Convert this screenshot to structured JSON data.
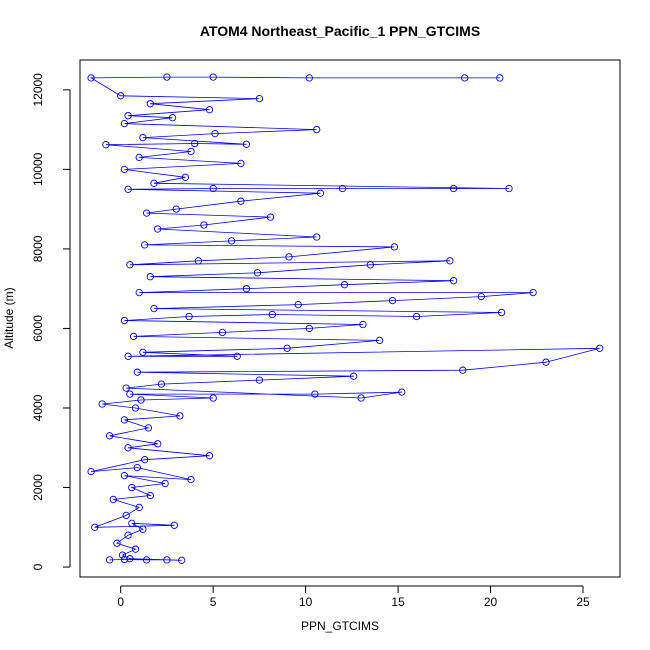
{
  "chart_data": {
    "type": "scatter",
    "title": "ATOM4 Northeast_Pacific_1 PPN_GTCIMS",
    "xlabel": "PPN_GTCIMS",
    "ylabel": "Altitude (m)",
    "xlim": [
      -2.2,
      27.0
    ],
    "ylim": [
      -250,
      12750
    ],
    "x_ticks": [
      0,
      5,
      10,
      15,
      20,
      25
    ],
    "y_ticks": [
      0,
      2000,
      4000,
      6000,
      8000,
      10000,
      12000
    ],
    "grid": false,
    "legend": "none",
    "style": "points connected by lines (type 'o' markers with line)",
    "color": "#0000ff",
    "series": [
      {
        "values": [
          [
            -0.6,
            180
          ],
          [
            0.2,
            190
          ],
          [
            1.4,
            180
          ],
          [
            2.5,
            180
          ],
          [
            3.3,
            170
          ],
          [
            0.5,
            210
          ],
          [
            0.1,
            300
          ],
          [
            0.8,
            450
          ],
          [
            -0.2,
            600
          ],
          [
            0.4,
            800
          ],
          [
            1.2,
            950
          ],
          [
            0.6,
            1100
          ],
          [
            2.9,
            1050
          ],
          [
            -1.4,
            1000
          ],
          [
            0.3,
            1300
          ],
          [
            1.0,
            1500
          ],
          [
            -0.4,
            1700
          ],
          [
            1.6,
            1800
          ],
          [
            0.6,
            2000
          ],
          [
            2.4,
            2100
          ],
          [
            0.2,
            2300
          ],
          [
            3.8,
            2200
          ],
          [
            0.9,
            2500
          ],
          [
            -1.6,
            2400
          ],
          [
            1.3,
            2700
          ],
          [
            4.8,
            2800
          ],
          [
            0.4,
            3000
          ],
          [
            2.0,
            3100
          ],
          [
            -0.6,
            3300
          ],
          [
            1.5,
            3500
          ],
          [
            0.2,
            3700
          ],
          [
            3.2,
            3800
          ],
          [
            0.8,
            4000
          ],
          [
            -1.0,
            4100
          ],
          [
            1.1,
            4200
          ],
          [
            5.0,
            4250
          ],
          [
            0.5,
            4350
          ],
          [
            10.5,
            4350
          ],
          [
            15.2,
            4400
          ],
          [
            13.0,
            4250
          ],
          [
            0.3,
            4500
          ],
          [
            2.2,
            4600
          ],
          [
            7.5,
            4700
          ],
          [
            12.6,
            4800
          ],
          [
            0.9,
            4900
          ],
          [
            18.5,
            4950
          ],
          [
            23.0,
            5150
          ],
          [
            25.9,
            5500
          ],
          [
            0.4,
            5300
          ],
          [
            6.3,
            5300
          ],
          [
            1.2,
            5400
          ],
          [
            9.0,
            5500
          ],
          [
            14.0,
            5700
          ],
          [
            0.7,
            5800
          ],
          [
            5.5,
            5900
          ],
          [
            10.2,
            6000
          ],
          [
            13.1,
            6100
          ],
          [
            0.2,
            6200
          ],
          [
            3.7,
            6300
          ],
          [
            8.2,
            6350
          ],
          [
            16.0,
            6300
          ],
          [
            20.6,
            6400
          ],
          [
            1.8,
            6500
          ],
          [
            9.6,
            6600
          ],
          [
            14.7,
            6700
          ],
          [
            19.5,
            6800
          ],
          [
            22.3,
            6900
          ],
          [
            1.0,
            6900
          ],
          [
            6.8,
            7000
          ],
          [
            12.1,
            7100
          ],
          [
            18.0,
            7200
          ],
          [
            1.6,
            7300
          ],
          [
            7.4,
            7400
          ],
          [
            13.5,
            7600
          ],
          [
            17.8,
            7700
          ],
          [
            0.5,
            7600
          ],
          [
            4.2,
            7700
          ],
          [
            9.1,
            7800
          ],
          [
            14.8,
            8050
          ],
          [
            1.3,
            8100
          ],
          [
            6.0,
            8200
          ],
          [
            10.6,
            8300
          ],
          [
            2.0,
            8500
          ],
          [
            4.5,
            8600
          ],
          [
            8.1,
            8800
          ],
          [
            1.4,
            8900
          ],
          [
            3.0,
            9000
          ],
          [
            6.5,
            9200
          ],
          [
            10.8,
            9400
          ],
          [
            0.4,
            9500
          ],
          [
            5.0,
            9520
          ],
          [
            12.0,
            9520
          ],
          [
            18.0,
            9520
          ],
          [
            21.0,
            9520
          ],
          [
            1.8,
            9650
          ],
          [
            3.5,
            9800
          ],
          [
            0.2,
            10000
          ],
          [
            6.5,
            10150
          ],
          [
            1.0,
            10300
          ],
          [
            3.8,
            10450
          ],
          [
            -0.8,
            10620
          ],
          [
            4.0,
            10650
          ],
          [
            6.8,
            10630
          ],
          [
            1.2,
            10800
          ],
          [
            5.1,
            10900
          ],
          [
            10.6,
            11000
          ],
          [
            0.2,
            11150
          ],
          [
            2.8,
            11300
          ],
          [
            0.4,
            11350
          ],
          [
            4.8,
            11500
          ],
          [
            1.6,
            11650
          ],
          [
            7.5,
            11780
          ],
          [
            0.0,
            11850
          ],
          [
            -1.6,
            12300
          ],
          [
            2.5,
            12320
          ],
          [
            5.0,
            12320
          ],
          [
            10.2,
            12300
          ],
          [
            18.6,
            12300
          ],
          [
            20.5,
            12300
          ]
        ]
      }
    ]
  }
}
